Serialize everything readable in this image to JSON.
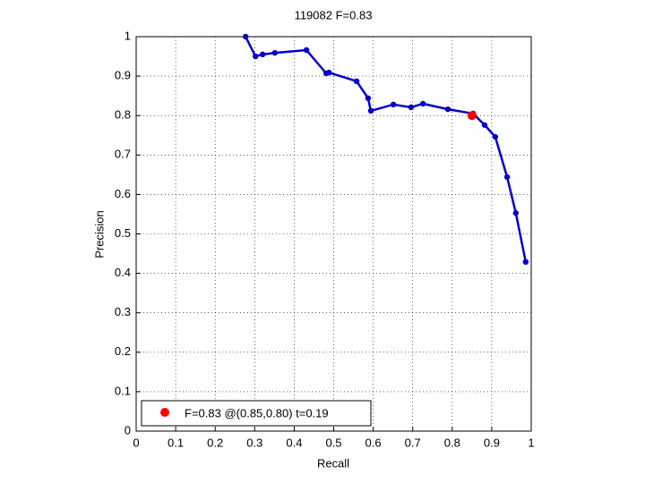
{
  "chart_data": {
    "type": "line",
    "title": "119082 F=0.83",
    "xlabel": "Recall",
    "ylabel": "Precision",
    "xlim": [
      0,
      1
    ],
    "ylim": [
      0,
      1
    ],
    "xticks": [
      0,
      0.1,
      0.2,
      0.3,
      0.4,
      0.5,
      0.6,
      0.7,
      0.8,
      0.9,
      1
    ],
    "yticks": [
      0,
      0.1,
      0.2,
      0.3,
      0.4,
      0.5,
      0.6,
      0.7,
      0.8,
      0.9,
      1
    ],
    "grid": true,
    "series": [
      {
        "color": "#0000cc",
        "x": [
          0.277,
          0.302,
          0.32,
          0.351,
          0.431,
          0.481,
          0.488,
          0.558,
          0.587,
          0.594,
          0.651,
          0.696,
          0.726,
          0.789,
          0.853,
          0.882,
          0.909,
          0.939,
          0.961,
          0.986
        ],
        "values": [
          1.0,
          0.95,
          0.955,
          0.959,
          0.966,
          0.907,
          0.909,
          0.887,
          0.844,
          0.812,
          0.828,
          0.821,
          0.83,
          0.816,
          0.805,
          0.776,
          0.746,
          0.644,
          0.553,
          0.429
        ]
      }
    ],
    "highlight": {
      "x": 0.85,
      "y": 0.8,
      "color": "#ff0000",
      "label": "F=0.83 @(0.85,0.80) t=0.19"
    },
    "legend": "lower left"
  }
}
